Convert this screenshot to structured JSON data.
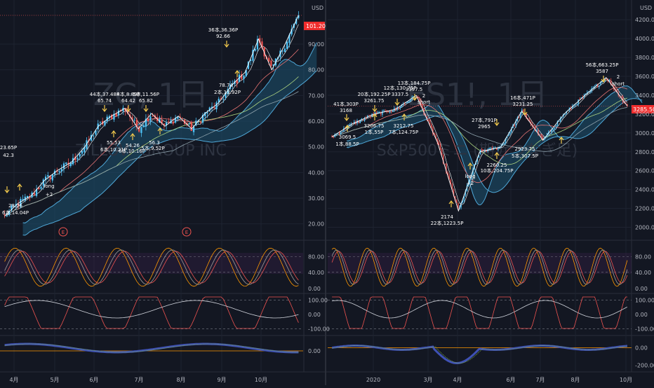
{
  "colors": {
    "background": "#131722",
    "grid": "#1e2330",
    "divider": "#2a2e39",
    "up": "#26a69a",
    "down": "#ef5350",
    "cloud": "#4fa8d8",
    "cloud_fill": "#1b4a66",
    "price_tag": "#ef2d2d",
    "axis_text": "#b2b5be",
    "annotation": "#ffffff",
    "arrow": "#f2c94c",
    "watermark": "#2d3340"
  },
  "left": {
    "watermark": "ZG, 1日",
    "watermark2": "ZILLOW GROUP INC",
    "currency": "USD",
    "price_tag": "101.20",
    "y_ticks": [
      "90.00",
      "80.00",
      "70.00",
      "60.00",
      "50.00",
      "40.00",
      "30.00",
      "20.00"
    ],
    "x_ticks": [
      "4月",
      "5月",
      "6月",
      "7月",
      "8月",
      "9月",
      "10月"
    ],
    "earnings": [
      "E",
      "E"
    ],
    "stoch_ticks": [
      "80.00",
      "40.00",
      "0.00"
    ],
    "rsi_ticks": [
      "100.00",
      "0.00",
      "-100.00"
    ],
    "macd_ticks": [
      "0.00"
    ],
    "annotations": [
      "23.65P",
      "42.3",
      "28.26",
      "6本,14.04P",
      "long",
      "+2",
      "44本,37.48P",
      "65.74",
      "4本,8.89P",
      "64.42",
      "5本,11.56P",
      "65.82",
      "55.53",
      "6本,10.21P",
      "54.26",
      "6本,10.16P",
      "56.3",
      "5本,9.52P",
      "36本,36.36P",
      "92.66",
      "78.74",
      "2本,13.92P"
    ]
  },
  "right": {
    "watermark": "ES1!, 1日",
    "watermark2": "S&P500ミニ (期近つなぎ足)",
    "currency": "USD",
    "price_tag": "3285.50",
    "y_ticks": [
      "4200.00",
      "4000.00",
      "3800.00",
      "3600.00",
      "3400.00",
      "3200.00",
      "3000.00",
      "2800.00",
      "2600.00",
      "2400.00",
      "2200.00",
      "2000.00"
    ],
    "x_ticks": [
      "2020",
      "3月",
      "4月",
      "6月",
      "7月",
      "8月",
      "10月"
    ],
    "stoch_ticks": [
      "80.00",
      "40.00",
      "0.00"
    ],
    "rsi_ticks": [
      "100.00",
      "0.00",
      "-100.00"
    ],
    "macd_ticks": [
      "0.00",
      "-200.00"
    ],
    "annotations": [
      "41本,303P",
      "3168",
      "20本,192.25P",
      "3261.75",
      "12本,130.75P",
      "3337.5",
      "13本,184.75P",
      "3397.5",
      "2",
      "short",
      "3069.5",
      "1本,88.5P",
      "3206.75",
      "1本,55P",
      "3212.75",
      "7本,124.75P",
      "27本,791P",
      "2965",
      "2174",
      "22本,1223.5P",
      "long",
      "+2",
      "2260.25",
      "10本,204.75P",
      "16本,471P",
      "3231.25",
      "2923.75",
      "5本,307.5P",
      "56本,663.25P",
      "3587",
      "2",
      "short"
    ]
  },
  "chart_data": [
    {
      "type": "candlestick",
      "name": "ZG",
      "ylim": [
        15,
        105
      ],
      "x_ticks": [
        "4月",
        "5月",
        "6月",
        "7月",
        "8月",
        "9月",
        "10月"
      ],
      "close_path": [
        {
          "d": "3/20",
          "v": 23
        },
        {
          "d": "3/25",
          "v": 28
        },
        {
          "d": "4/1",
          "v": 31
        },
        {
          "d": "4/10",
          "v": 37
        },
        {
          "d": "4/20",
          "v": 41
        },
        {
          "d": "5/1",
          "v": 44
        },
        {
          "d": "5/10",
          "v": 50
        },
        {
          "d": "5/20",
          "v": 58
        },
        {
          "d": "6/1",
          "v": 62
        },
        {
          "d": "6/8",
          "v": 65
        },
        {
          "d": "6/15",
          "v": 57
        },
        {
          "d": "6/22",
          "v": 63
        },
        {
          "d": "7/1",
          "v": 58
        },
        {
          "d": "7/8",
          "v": 62
        },
        {
          "d": "7/15",
          "v": 57
        },
        {
          "d": "7/22",
          "v": 63
        },
        {
          "d": "8/1",
          "v": 67
        },
        {
          "d": "8/10",
          "v": 74
        },
        {
          "d": "8/20",
          "v": 79
        },
        {
          "d": "9/1",
          "v": 92
        },
        {
          "d": "9/8",
          "v": 80
        },
        {
          "d": "9/15",
          "v": 90
        },
        {
          "d": "9/24",
          "v": 101.2
        }
      ],
      "last_price": 101.2
    },
    {
      "type": "candlestick",
      "name": "ES1!",
      "ylim": [
        1900,
        4350
      ],
      "x_ticks": [
        "2020",
        "3月",
        "4月",
        "6月",
        "7月",
        "8月",
        "10月"
      ],
      "close_path": [
        {
          "d": "2019-10",
          "v": 2960
        },
        {
          "d": "2019-11",
          "v": 3100
        },
        {
          "d": "2019-12",
          "v": 3200
        },
        {
          "d": "2020-01",
          "v": 3250
        },
        {
          "d": "2020-02-19",
          "v": 3397.5
        },
        {
          "d": "2020-02-28",
          "v": 2900
        },
        {
          "d": "2020-03-23",
          "v": 2174
        },
        {
          "d": "2020-04-15",
          "v": 2800
        },
        {
          "d": "2020-05-15",
          "v": 2850
        },
        {
          "d": "2020-06-08",
          "v": 3231.25
        },
        {
          "d": "2020-06-26",
          "v": 2923.75
        },
        {
          "d": "2020-07-15",
          "v": 3200
        },
        {
          "d": "2020-08-15",
          "v": 3400
        },
        {
          "d": "2020-09-02",
          "v": 3587
        },
        {
          "d": "2020-09-25",
          "v": 3285.5
        }
      ],
      "last_price": 3285.5
    }
  ]
}
